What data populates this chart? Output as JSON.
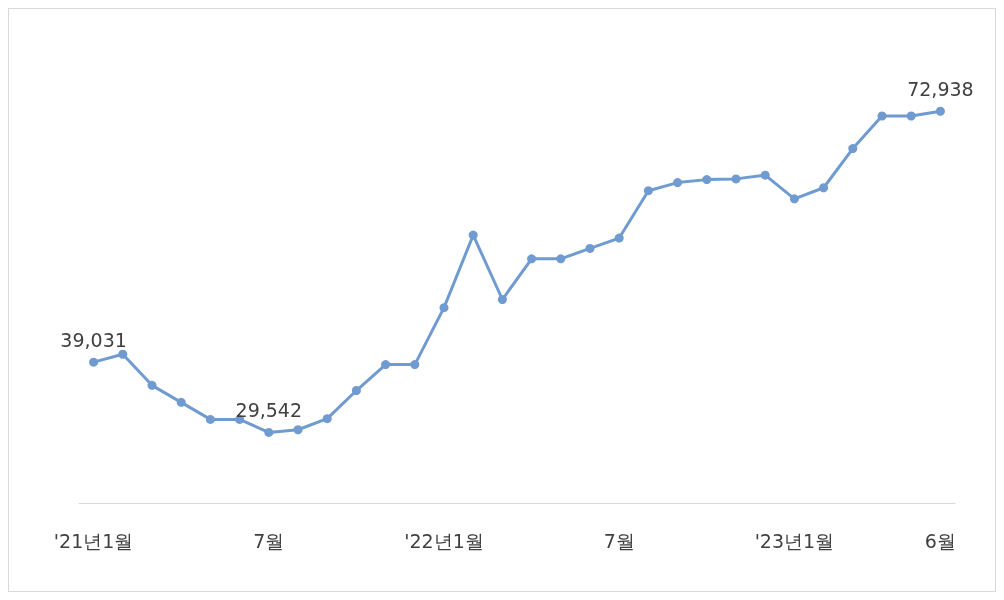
{
  "chart_data": {
    "type": "line",
    "categories": [
      "'21년1월",
      null,
      null,
      null,
      null,
      null,
      "7월",
      null,
      null,
      null,
      null,
      null,
      "'22년1월",
      null,
      null,
      null,
      null,
      null,
      "7월",
      null,
      null,
      null,
      null,
      null,
      "'23년1월",
      null,
      null,
      null,
      null,
      "6월"
    ],
    "series": [
      {
        "color": "#6f9bd1",
        "values": [
          39031,
          40100,
          35900,
          33600,
          31300,
          31300,
          29542,
          29900,
          31400,
          35200,
          38700,
          38700,
          46400,
          56200,
          47500,
          53000,
          53000,
          54400,
          55800,
          62200,
          63300,
          63700,
          63800,
          64300,
          61100,
          62600,
          67900,
          72300,
          72300,
          72938
        ],
        "value_labels": [
          "39,031",
          null,
          null,
          null,
          null,
          null,
          "29,542",
          null,
          null,
          null,
          null,
          null,
          null,
          null,
          null,
          null,
          null,
          null,
          null,
          null,
          null,
          null,
          null,
          null,
          null,
          null,
          null,
          null,
          null,
          "72,938"
        ]
      }
    ],
    "marker": "circle",
    "grid": false
  }
}
